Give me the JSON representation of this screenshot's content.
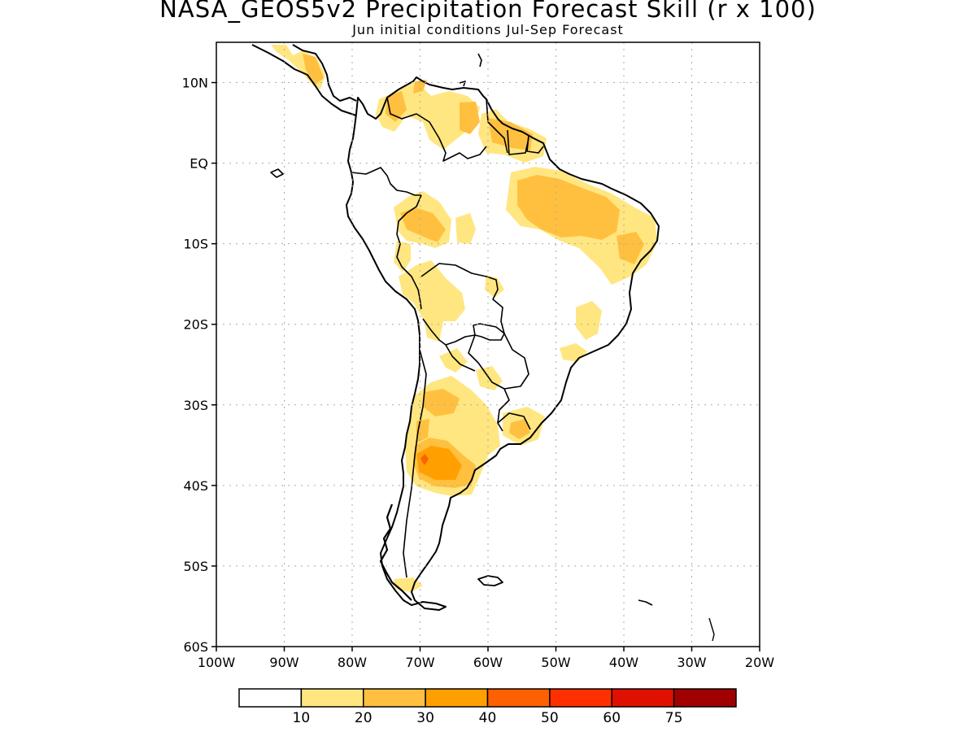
{
  "title": "NASA_GEOS5v2 Precipitation Forecast Skill (r x 100)",
  "subtitle": "Jun initial conditions  Jul-Sep Forecast",
  "map": {
    "lon_range": [
      -100,
      -20
    ],
    "lat_range": [
      -60,
      15
    ],
    "grid": "dotted",
    "lat_ticks": [
      {
        "value": 10,
        "label": "10N"
      },
      {
        "value": 0,
        "label": "EQ"
      },
      {
        "value": -10,
        "label": "10S"
      },
      {
        "value": -20,
        "label": "20S"
      },
      {
        "value": -30,
        "label": "30S"
      },
      {
        "value": -40,
        "label": "40S"
      },
      {
        "value": -50,
        "label": "50S"
      },
      {
        "value": -60,
        "label": "60S"
      }
    ],
    "lon_ticks": [
      {
        "value": -100,
        "label": "100W"
      },
      {
        "value": -90,
        "label": "90W"
      },
      {
        "value": -80,
        "label": "80W"
      },
      {
        "value": -70,
        "label": "70W"
      },
      {
        "value": -60,
        "label": "60W"
      },
      {
        "value": -50,
        "label": "50W"
      },
      {
        "value": -40,
        "label": "40W"
      },
      {
        "value": -30,
        "label": "30W"
      },
      {
        "value": -20,
        "label": "20W"
      }
    ]
  },
  "colorbar": {
    "bins": [
      {
        "color": "#ffffff"
      },
      {
        "color": "#ffe680"
      },
      {
        "color": "#ffc040"
      },
      {
        "color": "#ffa000"
      },
      {
        "color": "#ff6000"
      },
      {
        "color": "#ff3000"
      },
      {
        "color": "#e01000"
      },
      {
        "color": "#a00000"
      }
    ],
    "labels": [
      "10",
      "20",
      "30",
      "40",
      "50",
      "60",
      "75"
    ]
  },
  "regions": [
    {
      "level": "10-20",
      "color": "#ffe680",
      "area": "Central America"
    },
    {
      "level": "10-20",
      "color": "#ffe680",
      "area": "Colombia and Venezuela"
    },
    {
      "level": "10-20",
      "color": "#ffe680",
      "area": "Guianas"
    },
    {
      "level": "10-20",
      "color": "#ffe680",
      "area": "Eastern Amazon and Northeast Brazil"
    },
    {
      "level": "10-20",
      "color": "#ffe680",
      "area": "Peru and western Amazon"
    },
    {
      "level": "10-20",
      "color": "#ffe680",
      "area": "Bolivia and northern Argentina"
    },
    {
      "level": "10-20",
      "color": "#ffe680",
      "area": "Eastern Brazil"
    },
    {
      "level": "10-20",
      "color": "#ffe680",
      "area": "Central Argentina"
    },
    {
      "level": "10-20",
      "color": "#ffe680",
      "area": "Uruguay and southern Brazil"
    },
    {
      "level": "10-20",
      "color": "#ffe680",
      "area": "Southern Patagonia"
    },
    {
      "level": "20-30",
      "color": "#ffc040",
      "area": "Northeast Brazil"
    },
    {
      "level": "20-30",
      "color": "#ffc040",
      "area": "Colombia and Venezuela"
    },
    {
      "level": "20-30",
      "color": "#ffc040",
      "area": "Guianas"
    },
    {
      "level": "20-30",
      "color": "#ffc040",
      "area": "Peru"
    },
    {
      "level": "20-30",
      "color": "#ffc040",
      "area": "Central Argentina"
    },
    {
      "level": "30-40",
      "color": "#ffa000",
      "area": "Central Argentina"
    },
    {
      "level": "40-50",
      "color": "#ff6000",
      "area": "Central Argentina"
    }
  ]
}
